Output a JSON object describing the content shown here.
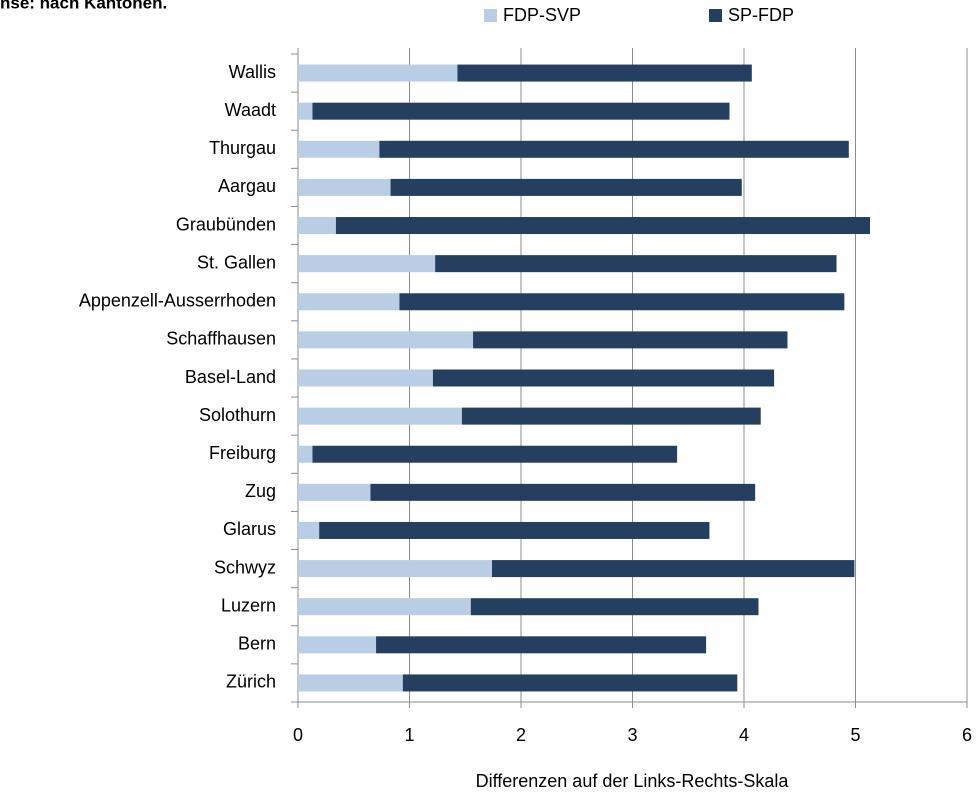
{
  "chart_data": {
    "type": "stacked-bar-horizontal",
    "title": "nse: nach Kantonen.",
    "x_label": "Differenzen auf der Links-Rechts-Skala",
    "categories": [
      "Wallis",
      "Waadt",
      "Thurgau",
      "Aargau",
      "Graubünden",
      "St. Gallen",
      "Appenzell-Ausserrhoden",
      "Schaffhausen",
      "Basel-Land",
      "Solothurn",
      "Freiburg",
      "Zug",
      "Glarus",
      "Schwyz",
      "Luzern",
      "Bern",
      "Zürich"
    ],
    "series": [
      {
        "name": "FDP-SVP",
        "color": "#b9cde5",
        "values": [
          1.43,
          0.13,
          0.73,
          0.83,
          0.34,
          1.23,
          0.91,
          1.57,
          1.21,
          1.47,
          0.13,
          0.65,
          0.19,
          1.74,
          1.55,
          0.7,
          0.94
        ]
      },
      {
        "name": "SP-FDP",
        "color": "#243f60",
        "values": [
          2.64,
          3.74,
          4.21,
          3.15,
          4.79,
          3.6,
          3.99,
          2.82,
          3.06,
          2.68,
          3.27,
          3.45,
          3.5,
          3.25,
          2.58,
          2.96,
          3.0
        ]
      }
    ],
    "xlim": [
      0,
      6
    ],
    "xticks": [
      0,
      1,
      2,
      3,
      4,
      5,
      6
    ],
    "grid": true,
    "legend": "top"
  }
}
